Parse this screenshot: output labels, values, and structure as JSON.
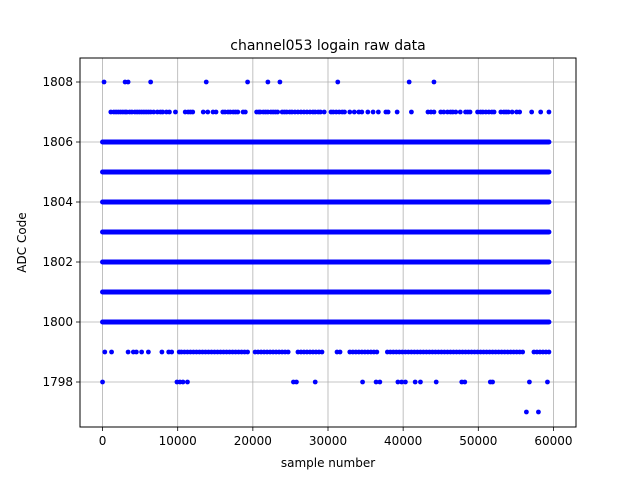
{
  "chart_data": {
    "type": "scatter",
    "title": "channel053 logain raw data",
    "xlabel": "sample number",
    "ylabel": "ADC Code",
    "xlim": [
      -3000,
      63000
    ],
    "ylim": [
      1796.5,
      1808.8
    ],
    "xticks": [
      0,
      10000,
      20000,
      30000,
      40000,
      50000,
      60000
    ],
    "yticks": [
      1798,
      1800,
      1802,
      1804,
      1806,
      1808
    ],
    "grid": true,
    "color": "#0000ff",
    "dense_levels": [
      1800,
      1801,
      1802,
      1803,
      1804,
      1805,
      1806
    ],
    "dense_x_range": [
      0,
      59400
    ],
    "sparse_points": {
      "1808": [
        200,
        3000,
        3400,
        6400,
        13800,
        19300,
        22000,
        23600,
        31300,
        40800,
        44100
      ],
      "1807": [
        1100,
        1500,
        1800,
        2100,
        2400,
        2700,
        3000,
        3200,
        3600,
        3900,
        4300,
        4600,
        4900,
        5200,
        5500,
        5800,
        6100,
        6400,
        6800,
        7300,
        7700,
        8000,
        8500,
        8900,
        9700,
        11000,
        11400,
        11700,
        12000,
        13400,
        14000,
        14700,
        15100,
        16000,
        16300,
        16700,
        17000,
        17400,
        17700,
        18000,
        18700,
        19000,
        20500,
        20800,
        21000,
        21400,
        21700,
        22000,
        22400,
        22700,
        23000,
        23300,
        23900,
        24200,
        24500,
        24900,
        25200,
        25600,
        26000,
        26400,
        26800,
        27200,
        27600,
        28000,
        28300,
        28700,
        29000,
        29500,
        30400,
        30700,
        31100,
        31500,
        31900,
        32200,
        32900,
        33500,
        34100,
        34500,
        35300,
        36000,
        36700,
        37700,
        38000,
        39200,
        41100,
        43300,
        43700,
        44100,
        45000,
        45400,
        45900,
        46300,
        46600,
        47000,
        47600,
        48300,
        48600,
        48900,
        49900,
        50300,
        50600,
        51000,
        51400,
        51800,
        52100,
        53000,
        53400,
        53700,
        54000,
        54500,
        55100,
        55500,
        57100,
        58300,
        59400
      ],
      "1799": [
        300,
        1200,
        3400,
        4100,
        4500,
        5200,
        6100,
        7900,
        8800,
        9200,
        10200,
        10500,
        10900,
        11300,
        11700,
        12100,
        12500,
        12900,
        13300,
        13700,
        14100,
        14500,
        14900,
        15300,
        15700,
        16100,
        16500,
        16900,
        17300,
        17700,
        18100,
        18500,
        18900,
        19300,
        20300,
        20700,
        21100,
        21500,
        21900,
        22300,
        22700,
        23100,
        23500,
        23900,
        24300,
        24700,
        26000,
        26400,
        26800,
        27200,
        27600,
        28000,
        28400,
        28800,
        29200,
        31200,
        31600,
        32900,
        33300,
        33700,
        34100,
        34500,
        34900,
        35300,
        35700,
        36100,
        36500,
        37900,
        38300,
        38700,
        39100,
        39500,
        39900,
        40300,
        40700,
        41100,
        41500,
        41900,
        42300,
        42700,
        43100,
        43500,
        43900,
        44300,
        44700,
        45100,
        45500,
        45900,
        46300,
        46700,
        47100,
        47500,
        47900,
        48300,
        48700,
        49100,
        49500,
        49900,
        50300,
        50700,
        51100,
        51500,
        51900,
        52300,
        52700,
        53100,
        53500,
        53900,
        54300,
        54700,
        55100,
        55500,
        55900,
        57400,
        57800,
        58200,
        58600,
        59000,
        59400
      ],
      "1798": [
        0,
        9900,
        10300,
        10700,
        11300,
        25400,
        25800,
        28300,
        34600,
        36400,
        36900,
        39300,
        39800,
        40300,
        41600,
        42300,
        44400,
        47800,
        48200,
        51600,
        51900,
        56800,
        59200
      ],
      "1797": [
        56400,
        58000
      ]
    }
  }
}
